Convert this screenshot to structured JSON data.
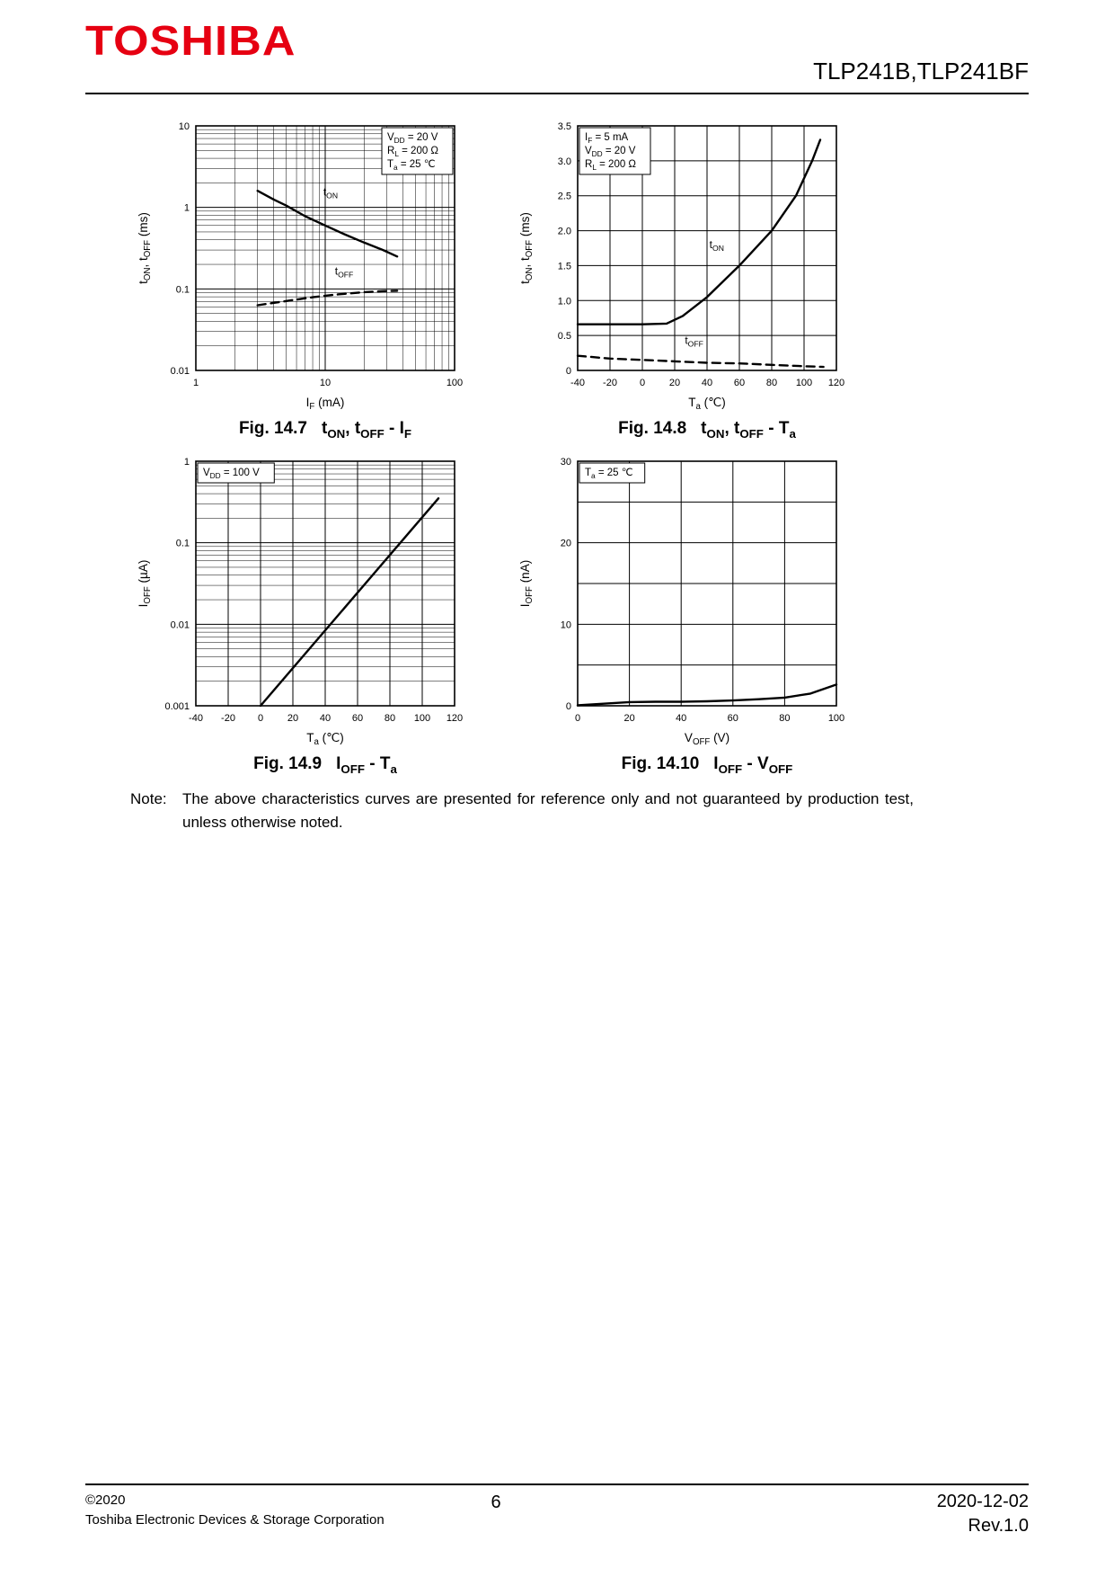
{
  "header": {
    "logo": "TOSHIBA",
    "part_number": "TLP241B,TLP241BF"
  },
  "note": {
    "label": "Note:",
    "text": "The above characteristics curves are presented for reference only and not guaranteed by production test, unless otherwise noted."
  },
  "footer": {
    "copyright": "©2020",
    "company": "Toshiba Electronic Devices & Storage Corporation",
    "page_number": "6",
    "date": "2020-12-02",
    "revision": "Rev.1.0"
  },
  "colors": {
    "brand_red": "#e60012",
    "ink": "#000000"
  },
  "chart_data": [
    {
      "type": "line",
      "fig": "Fig. 14.7",
      "title": "t_{ON}, t_{OFF} - I_{F}",
      "x": {
        "scale": "log",
        "min": 1,
        "max": 100,
        "label": "I_{F}  (mA)",
        "ticks": [
          {
            "v": 1,
            "l": "1"
          },
          {
            "v": 10,
            "l": "10"
          },
          {
            "v": 100,
            "l": "100"
          }
        ]
      },
      "y": {
        "scale": "log",
        "min": 0.01,
        "max": 10,
        "label": "t_{ON}, t_{OFF}  (ms)",
        "ticks": [
          {
            "v": 0.01,
            "l": "0.01"
          },
          {
            "v": 0.1,
            "l": "0.1"
          },
          {
            "v": 1,
            "l": "1"
          },
          {
            "v": 10,
            "l": "10"
          }
        ]
      },
      "annotation": {
        "pos": "tr",
        "lines": [
          "V_{DD} = 20 V",
          "R_{L} = 200 Ω",
          "T_{a} = 25 ℃"
        ]
      },
      "series": [
        {
          "name": "t_{ON}",
          "dashed": false,
          "label_at": [
            11,
            1.4
          ],
          "points": [
            [
              3,
              1.6
            ],
            [
              4,
              1.25
            ],
            [
              5,
              1.05
            ],
            [
              7,
              0.78
            ],
            [
              10,
              0.6
            ],
            [
              14,
              0.47
            ],
            [
              20,
              0.37
            ],
            [
              28,
              0.3
            ],
            [
              36,
              0.25
            ]
          ]
        },
        {
          "name": "t_{OFF}",
          "dashed": true,
          "label_at": [
            14,
            0.15
          ],
          "points": [
            [
              3,
              0.063
            ],
            [
              5,
              0.071
            ],
            [
              8,
              0.079
            ],
            [
              12,
              0.085
            ],
            [
              20,
              0.091
            ],
            [
              28,
              0.094
            ],
            [
              36,
              0.095
            ]
          ]
        }
      ]
    },
    {
      "type": "line",
      "fig": "Fig. 14.8",
      "title": "t_{ON}, t_{OFF} - T_{a}",
      "x": {
        "scale": "linear",
        "min": -40,
        "max": 120,
        "grid_step": 20,
        "label": "T_{a}  (℃)",
        "ticks": [
          {
            "v": -40,
            "l": "-40"
          },
          {
            "v": -20,
            "l": "-20"
          },
          {
            "v": 0,
            "l": "0"
          },
          {
            "v": 20,
            "l": "20"
          },
          {
            "v": 40,
            "l": "40"
          },
          {
            "v": 60,
            "l": "60"
          },
          {
            "v": 80,
            "l": "80"
          },
          {
            "v": 100,
            "l": "100"
          },
          {
            "v": 120,
            "l": "120"
          }
        ]
      },
      "y": {
        "scale": "linear",
        "min": 0,
        "max": 3.5,
        "grid_step": 0.5,
        "label": "t_{ON}, t_{OFF}  (ms)",
        "ticks": [
          {
            "v": 0,
            "l": "0"
          },
          {
            "v": 0.5,
            "l": "0.5"
          },
          {
            "v": 1,
            "l": "1.0"
          },
          {
            "v": 1.5,
            "l": "1.5"
          },
          {
            "v": 2,
            "l": "2.0"
          },
          {
            "v": 2.5,
            "l": "2.5"
          },
          {
            "v": 3,
            "l": "3.0"
          },
          {
            "v": 3.5,
            "l": "3.5"
          }
        ]
      },
      "annotation": {
        "pos": "tl",
        "lines": [
          "I_{F} = 5 mA",
          "V_{DD} = 20 V",
          "R_{L} = 200 Ω"
        ]
      },
      "series": [
        {
          "name": "t_{ON}",
          "dashed": false,
          "label_at": [
            46,
            1.75
          ],
          "points": [
            [
              -40,
              0.66
            ],
            [
              -20,
              0.66
            ],
            [
              0,
              0.66
            ],
            [
              15,
              0.67
            ],
            [
              25,
              0.78
            ],
            [
              40,
              1.05
            ],
            [
              60,
              1.5
            ],
            [
              80,
              2.0
            ],
            [
              95,
              2.5
            ],
            [
              105,
              3.0
            ],
            [
              110,
              3.3
            ]
          ]
        },
        {
          "name": "t_{OFF}",
          "dashed": true,
          "label_at": [
            32,
            0.38
          ],
          "points": [
            [
              -40,
              0.21
            ],
            [
              -20,
              0.17
            ],
            [
              0,
              0.15
            ],
            [
              20,
              0.13
            ],
            [
              40,
              0.11
            ],
            [
              60,
              0.1
            ],
            [
              80,
              0.08
            ],
            [
              100,
              0.06
            ],
            [
              112,
              0.05
            ]
          ]
        }
      ]
    },
    {
      "type": "line",
      "fig": "Fig. 14.9",
      "title": "I_{OFF} - T_{a}",
      "x": {
        "scale": "linear",
        "min": -40,
        "max": 120,
        "grid_step": 20,
        "label": "T_{a}  (℃)",
        "ticks": [
          {
            "v": -40,
            "l": "-40"
          },
          {
            "v": -20,
            "l": "-20"
          },
          {
            "v": 0,
            "l": "0"
          },
          {
            "v": 20,
            "l": "20"
          },
          {
            "v": 40,
            "l": "40"
          },
          {
            "v": 60,
            "l": "60"
          },
          {
            "v": 80,
            "l": "80"
          },
          {
            "v": 100,
            "l": "100"
          },
          {
            "v": 120,
            "l": "120"
          }
        ]
      },
      "y": {
        "scale": "log",
        "min": 0.001,
        "max": 1,
        "label": "I_{OFF}  (µA)",
        "ticks": [
          {
            "v": 0.001,
            "l": "0.001"
          },
          {
            "v": 0.01,
            "l": "0.01"
          },
          {
            "v": 0.1,
            "l": "0.1"
          },
          {
            "v": 1,
            "l": "1"
          }
        ]
      },
      "annotation": {
        "pos": "tl",
        "lines": [
          "V_{DD} = 100 V"
        ]
      },
      "series": [
        {
          "name": "I_{OFF}",
          "dashed": false,
          "label_at": null,
          "points": [
            [
              0,
              0.001
            ],
            [
              110,
              0.35
            ]
          ]
        }
      ]
    },
    {
      "type": "line",
      "fig": "Fig. 14.10",
      "title": "I_{OFF} - V_{OFF}",
      "x": {
        "scale": "linear",
        "min": 0,
        "max": 100,
        "grid_step": 20,
        "label": "V_{OFF}  (V)",
        "ticks": [
          {
            "v": 0,
            "l": "0"
          },
          {
            "v": 20,
            "l": "20"
          },
          {
            "v": 40,
            "l": "40"
          },
          {
            "v": 60,
            "l": "60"
          },
          {
            "v": 80,
            "l": "80"
          },
          {
            "v": 100,
            "l": "100"
          }
        ]
      },
      "y": {
        "scale": "linear",
        "min": 0,
        "max": 30,
        "grid_step": 5,
        "label": "I_{OFF}  (nA)",
        "ticks": [
          {
            "v": 0,
            "l": "0"
          },
          {
            "v": 10,
            "l": "10"
          },
          {
            "v": 20,
            "l": "20"
          },
          {
            "v": 30,
            "l": "30"
          }
        ]
      },
      "annotation": {
        "pos": "tl",
        "lines": [
          "T_{a} = 25 ℃"
        ]
      },
      "series": [
        {
          "name": "I_{OFF}",
          "dashed": false,
          "label_at": null,
          "points": [
            [
              0,
              0.05
            ],
            [
              10,
              0.25
            ],
            [
              20,
              0.45
            ],
            [
              30,
              0.5
            ],
            [
              40,
              0.5
            ],
            [
              50,
              0.55
            ],
            [
              60,
              0.65
            ],
            [
              70,
              0.8
            ],
            [
              80,
              1.0
            ],
            [
              90,
              1.5
            ],
            [
              100,
              2.6
            ]
          ]
        }
      ]
    }
  ]
}
